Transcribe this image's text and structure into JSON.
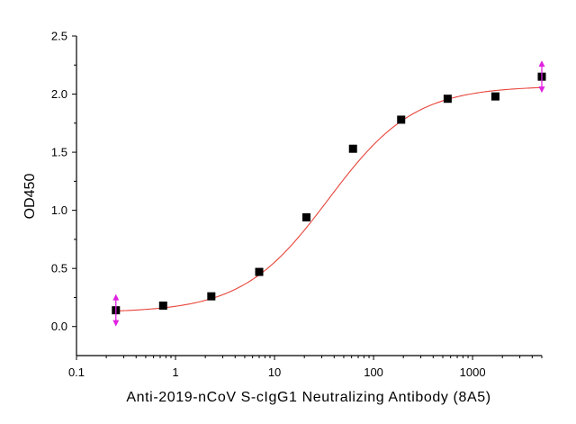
{
  "chart_data": {
    "type": "scatter",
    "title": "",
    "xlabel": "Anti-2019-nCoV S-cIgG1 Neutralizing Antibody (8A5)",
    "ylabel": "OD450",
    "xscale": "log",
    "xlim": [
      0.1,
      5000
    ],
    "ylim": [
      -0.25,
      2.5
    ],
    "x_ticks": [
      0.1,
      1,
      10,
      100,
      1000
    ],
    "x_tick_labels": [
      "0.1",
      "1",
      "10",
      "100",
      "1000"
    ],
    "y_ticks": [
      0.0,
      0.5,
      1.0,
      1.5,
      2.0,
      2.5
    ],
    "y_tick_labels": [
      "0.0",
      "0.5",
      "1.0",
      "1.5",
      "2.0",
      "2.5"
    ],
    "grid": false,
    "legend": "none",
    "series": [
      {
        "marker": "square",
        "color": "#000000",
        "x": [
          0.25,
          0.75,
          2.3,
          7,
          21,
          62,
          190,
          560,
          1700,
          5000
        ],
        "y": [
          0.14,
          0.18,
          0.26,
          0.47,
          0.94,
          1.53,
          1.78,
          1.96,
          1.98,
          2.15
        ]
      }
    ],
    "fit_curve": {
      "type": "4PL",
      "color": "#e8443a",
      "bottom": 0.12,
      "top": 2.07,
      "ec50": 35,
      "hill": 1.0
    },
    "annotations": [
      {
        "shape": "double-arrow",
        "color": "#e020e0",
        "x": 0.25,
        "y": 0.14
      },
      {
        "shape": "double-arrow",
        "color": "#e020e0",
        "x": 5000,
        "y": 2.15
      }
    ]
  }
}
